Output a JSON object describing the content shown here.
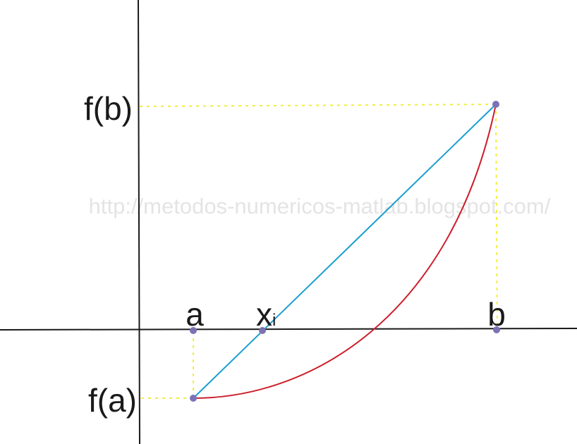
{
  "diagram": {
    "labels": {
      "fb": "f(b)",
      "fa": "f(a)",
      "a": "a",
      "xi_main": "x",
      "xi_sub": "i",
      "b": "b"
    },
    "watermark": "http://metodos-numericos-matlab.blogspot.com/",
    "colors": {
      "axes": "#1a1a1a",
      "secant": "#1a9fd0",
      "curve": "#cc1f2b",
      "guides": "#f2ee3a",
      "points": "#7b72b6"
    }
  }
}
